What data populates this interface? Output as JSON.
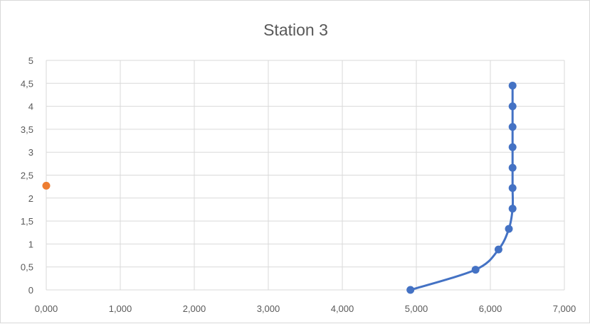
{
  "chart_data": {
    "type": "scatter",
    "title": "Station 3",
    "xlabel": "",
    "ylabel": "",
    "xlim": [
      0,
      7
    ],
    "ylim": [
      0,
      5
    ],
    "x_ticks": [
      "0,000",
      "1,000",
      "2,000",
      "3,000",
      "4,000",
      "5,000",
      "6,000",
      "7,000"
    ],
    "y_ticks": [
      "0",
      "0,5",
      "1",
      "1,5",
      "2",
      "2,5",
      "3",
      "3,5",
      "4",
      "4,5",
      "5"
    ],
    "grid": true,
    "legend": "none",
    "series": [
      {
        "style": "smooth-line-markers",
        "color": "#4472C4",
        "points": [
          {
            "x": 4.92,
            "y": 0.0
          },
          {
            "x": 5.8,
            "y": 0.44
          },
          {
            "x": 6.11,
            "y": 0.88
          },
          {
            "x": 6.25,
            "y": 1.33
          },
          {
            "x": 6.3,
            "y": 1.77
          },
          {
            "x": 6.3,
            "y": 2.22
          },
          {
            "x": 6.3,
            "y": 2.66
          },
          {
            "x": 6.3,
            "y": 3.11
          },
          {
            "x": 6.3,
            "y": 3.55
          },
          {
            "x": 6.3,
            "y": 4.0
          },
          {
            "x": 6.3,
            "y": 4.45
          }
        ]
      },
      {
        "style": "markers",
        "color": "#ED7D31",
        "points": [
          {
            "x": 0.0,
            "y": 2.27
          }
        ]
      }
    ]
  }
}
